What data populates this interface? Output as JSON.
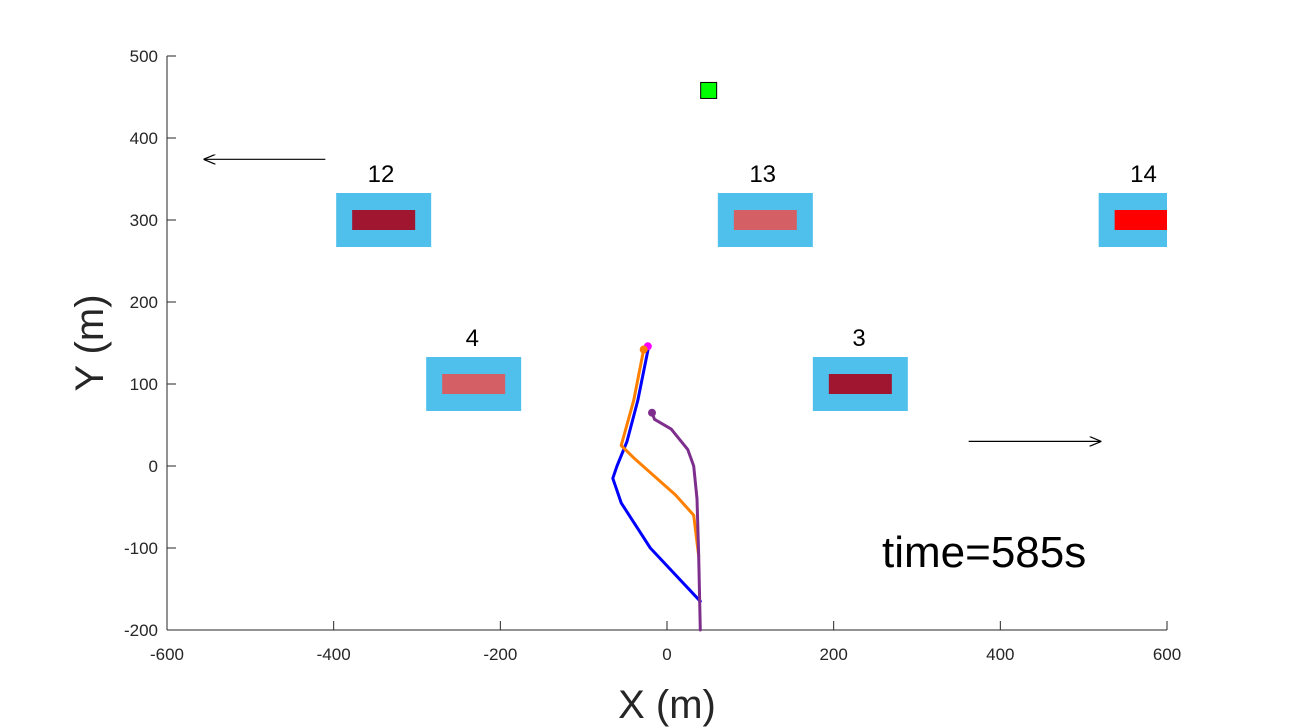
{
  "chart_data": {
    "type": "scatter",
    "title": "",
    "xlabel": "X (m)",
    "ylabel": "Y (m)",
    "xlim": [
      -600,
      600
    ],
    "ylim": [
      -200,
      500
    ],
    "xticks": [
      -600,
      -400,
      -200,
      0,
      200,
      400,
      600
    ],
    "yticks": [
      -200,
      -100,
      0,
      100,
      200,
      300,
      400,
      500
    ],
    "grid": false,
    "annotation_text": "time=585s",
    "target": {
      "x": 50,
      "y": 458,
      "color": "#00ff00"
    },
    "zones": [
      {
        "label": "12",
        "x": -340,
        "y": 300,
        "inner_color": "#a01530"
      },
      {
        "label": "13",
        "x": 118,
        "y": 300,
        "inner_color": "#d46065"
      },
      {
        "label": "14",
        "x": 575,
        "y": 300,
        "inner_color": "#ff0000"
      },
      {
        "label": "4",
        "x": -232,
        "y": 100,
        "inner_color": "#d46065"
      },
      {
        "label": "3",
        "x": 232,
        "y": 100,
        "inner_color": "#a01530"
      }
    ],
    "zone_outer_color": "#4fc0ec",
    "arrows": [
      {
        "from": [
          -410,
          374
        ],
        "to": [
          -555,
          374
        ]
      },
      {
        "from": [
          362,
          30
        ],
        "to": [
          520,
          30
        ]
      }
    ],
    "series": [
      {
        "color": "#0000ff",
        "points": [
          [
            40,
            -165
          ],
          [
            -20,
            -100
          ],
          [
            -55,
            -45
          ],
          [
            -65,
            -15
          ],
          [
            -60,
            0
          ],
          [
            -48,
            30
          ],
          [
            -35,
            80
          ],
          [
            -22,
            146
          ]
        ]
      },
      {
        "color": "#ff8000",
        "points": [
          [
            38,
            -110
          ],
          [
            32,
            -60
          ],
          [
            10,
            -35
          ],
          [
            -40,
            10
          ],
          [
            -55,
            25
          ],
          [
            -40,
            80
          ],
          [
            -28,
            142
          ]
        ]
      },
      {
        "color": "#7e2f8e",
        "points": [
          [
            40,
            -200
          ],
          [
            38,
            -110
          ],
          [
            36,
            -40
          ],
          [
            32,
            0
          ],
          [
            25,
            20
          ],
          [
            5,
            45
          ],
          [
            -15,
            57
          ],
          [
            -18,
            65
          ]
        ]
      }
    ],
    "end_markers": [
      {
        "x": -23,
        "y": 146,
        "color": "#ff00ff"
      },
      {
        "x": -28,
        "y": 142,
        "color": "#ff8000"
      },
      {
        "x": -18,
        "y": 65,
        "color": "#7e2f8e"
      }
    ]
  }
}
